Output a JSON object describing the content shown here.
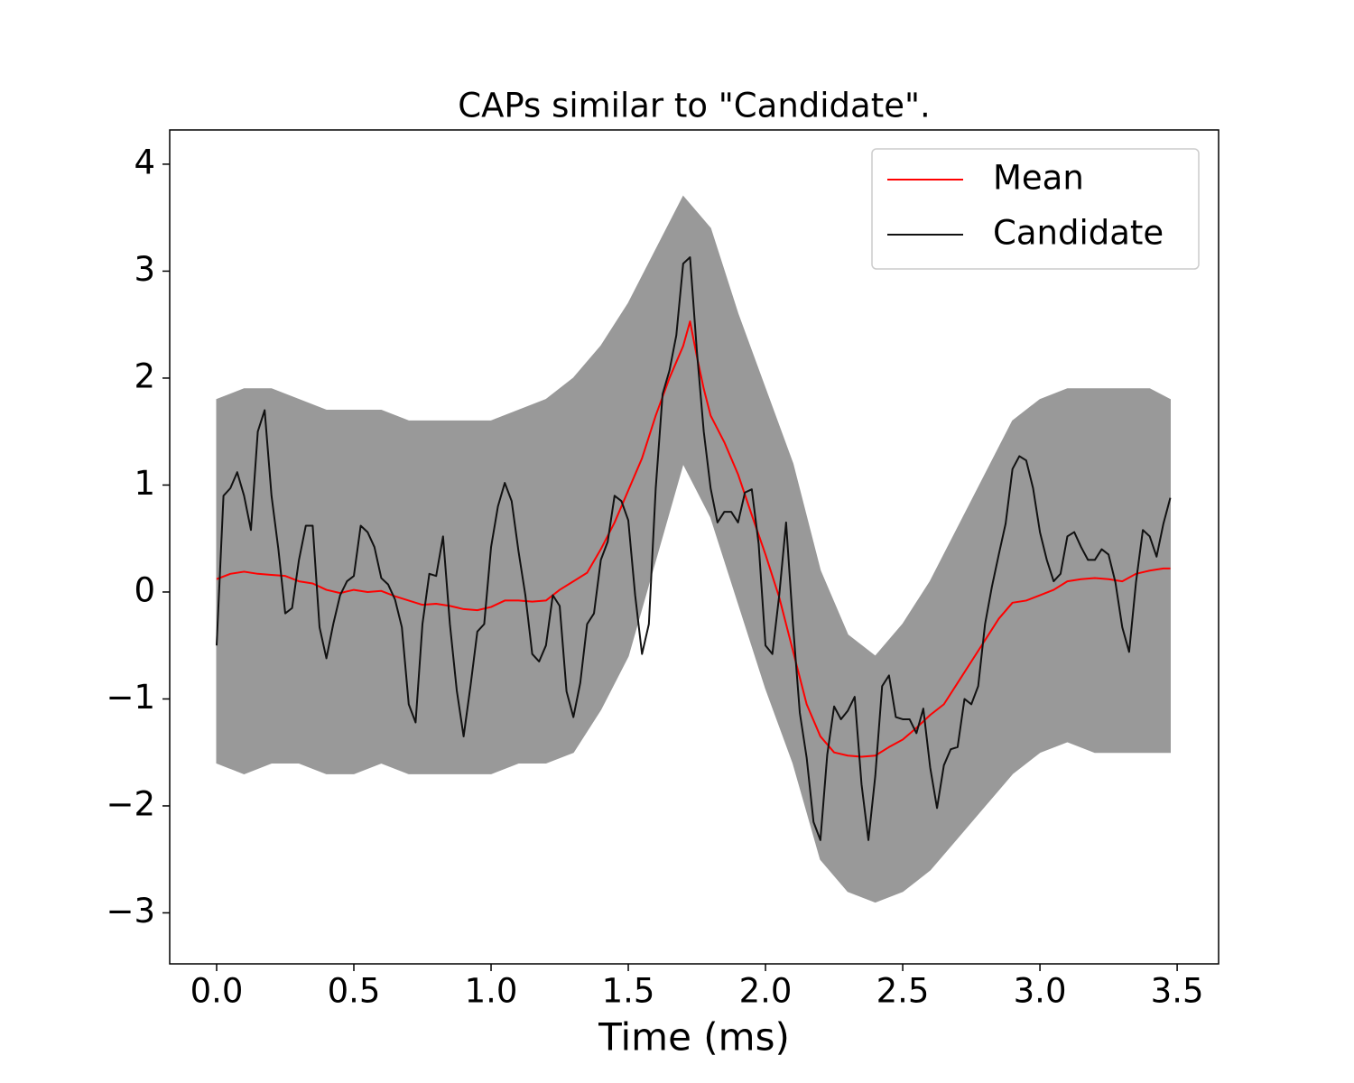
{
  "chart_data": {
    "type": "line",
    "title": "CAPs similar to \"Candidate\".",
    "xlabel": "Time (ms)",
    "xlim": [
      -0.171,
      3.651
    ],
    "ylim": [
      -3.477,
      4.32
    ],
    "xticks": [
      {
        "value": 0,
        "label": "0.0"
      },
      0.5,
      {
        "value": 1,
        "label": "1.0"
      },
      1.5,
      {
        "value": 2,
        "label": "2.0"
      },
      2.5,
      {
        "value": 3,
        "label": "3.0"
      },
      3.5
    ],
    "yticks": [
      {
        "value": -3,
        "label": "−3"
      },
      {
        "value": -2,
        "label": "−2"
      },
      {
        "value": -1,
        "label": "−1"
      },
      0,
      1,
      2,
      3,
      4
    ],
    "legend": "upper right",
    "band": {
      "color": "#999999",
      "x": [
        0,
        0.1,
        0.2,
        0.3,
        0.4,
        0.5,
        0.6,
        0.7,
        0.8,
        0.9,
        1.0,
        1.1,
        1.2,
        1.3,
        1.4,
        1.5,
        1.6,
        1.7,
        1.8,
        1.9,
        2.0,
        2.1,
        2.2,
        2.3,
        2.4,
        2.5,
        2.6,
        2.7,
        2.8,
        2.9,
        3.0,
        3.1,
        3.2,
        3.3,
        3.4,
        3.475
      ],
      "upper": [
        1.8,
        1.9,
        1.9,
        1.8,
        1.7,
        1.7,
        1.7,
        1.6,
        1.6,
        1.6,
        1.6,
        1.7,
        1.8,
        2.0,
        2.3,
        2.7,
        3.2,
        3.7,
        3.4,
        2.6,
        1.9,
        1.2,
        0.2,
        -0.4,
        -0.6,
        -0.3,
        0.1,
        0.6,
        1.1,
        1.6,
        1.8,
        1.9,
        1.9,
        1.9,
        1.9,
        1.8
      ],
      "lower": [
        -1.6,
        -1.7,
        -1.6,
        -1.6,
        -1.7,
        -1.7,
        -1.6,
        -1.7,
        -1.7,
        -1.7,
        -1.7,
        -1.6,
        -1.6,
        -1.5,
        -1.1,
        -0.6,
        0.3,
        1.2,
        0.7,
        -0.1,
        -0.9,
        -1.6,
        -2.5,
        -2.8,
        -2.9,
        -2.8,
        -2.6,
        -2.3,
        -2.0,
        -1.7,
        -1.5,
        -1.4,
        -1.5,
        -1.5,
        -1.5,
        -1.5
      ]
    },
    "series": [
      {
        "name": "Mean",
        "color": "#ff0000",
        "x": [
          0,
          0.05,
          0.1,
          0.15,
          0.2,
          0.25,
          0.3,
          0.35,
          0.4,
          0.45,
          0.5,
          0.55,
          0.6,
          0.65,
          0.7,
          0.75,
          0.8,
          0.85,
          0.9,
          0.95,
          1.0,
          1.05,
          1.1,
          1.15,
          1.2,
          1.25,
          1.3,
          1.35,
          1.4,
          1.45,
          1.5,
          1.55,
          1.6,
          1.65,
          1.7,
          1.725,
          1.75,
          1.775,
          1.8,
          1.85,
          1.9,
          1.95,
          2.0,
          2.05,
          2.1,
          2.15,
          2.2,
          2.25,
          2.3,
          2.35,
          2.4,
          2.45,
          2.5,
          2.55,
          2.6,
          2.65,
          2.7,
          2.75,
          2.8,
          2.85,
          2.9,
          2.95,
          3.0,
          3.05,
          3.1,
          3.15,
          3.2,
          3.25,
          3.3,
          3.35,
          3.4,
          3.45,
          3.475
        ],
        "values": [
          0.12,
          0.17,
          0.19,
          0.17,
          0.16,
          0.15,
          0.1,
          0.08,
          0.02,
          -0.01,
          0.02,
          0.0,
          0.01,
          -0.04,
          -0.08,
          -0.12,
          -0.11,
          -0.13,
          -0.16,
          -0.17,
          -0.14,
          -0.08,
          -0.08,
          -0.09,
          -0.08,
          0.02,
          0.1,
          0.18,
          0.4,
          0.65,
          0.95,
          1.25,
          1.65,
          2.0,
          2.3,
          2.53,
          2.2,
          1.9,
          1.65,
          1.4,
          1.1,
          0.72,
          0.35,
          -0.05,
          -0.55,
          -1.05,
          -1.35,
          -1.5,
          -1.53,
          -1.54,
          -1.53,
          -1.45,
          -1.38,
          -1.27,
          -1.15,
          -1.05,
          -0.85,
          -0.65,
          -0.45,
          -0.25,
          -0.1,
          -0.08,
          -0.03,
          0.02,
          0.1,
          0.12,
          0.13,
          0.12,
          0.1,
          0.17,
          0.2,
          0.22,
          0.22
        ]
      },
      {
        "name": "Candidate",
        "color": "#111111",
        "x": [
          0,
          0.025,
          0.05,
          0.075,
          0.1,
          0.125,
          0.15,
          0.175,
          0.2,
          0.225,
          0.25,
          0.275,
          0.3,
          0.325,
          0.35,
          0.375,
          0.4,
          0.425,
          0.45,
          0.475,
          0.5,
          0.525,
          0.55,
          0.575,
          0.6,
          0.625,
          0.65,
          0.675,
          0.7,
          0.725,
          0.75,
          0.775,
          0.8,
          0.825,
          0.85,
          0.875,
          0.9,
          0.925,
          0.95,
          0.975,
          1.0,
          1.025,
          1.05,
          1.075,
          1.1,
          1.125,
          1.15,
          1.175,
          1.2,
          1.225,
          1.25,
          1.275,
          1.3,
          1.325,
          1.35,
          1.375,
          1.4,
          1.425,
          1.45,
          1.475,
          1.5,
          1.525,
          1.55,
          1.575,
          1.6,
          1.625,
          1.65,
          1.675,
          1.7,
          1.725,
          1.75,
          1.775,
          1.8,
          1.825,
          1.85,
          1.875,
          1.9,
          1.925,
          1.95,
          1.975,
          2.0,
          2.025,
          2.05,
          2.075,
          2.1,
          2.125,
          2.15,
          2.175,
          2.2,
          2.225,
          2.25,
          2.275,
          2.3,
          2.325,
          2.35,
          2.375,
          2.4,
          2.425,
          2.45,
          2.475,
          2.5,
          2.525,
          2.55,
          2.575,
          2.6,
          2.625,
          2.65,
          2.675,
          2.7,
          2.725,
          2.75,
          2.775,
          2.8,
          2.825,
          2.85,
          2.875,
          2.9,
          2.925,
          2.95,
          2.975,
          3.0,
          3.025,
          3.05,
          3.075,
          3.1,
          3.125,
          3.15,
          3.175,
          3.2,
          3.225,
          3.25,
          3.275,
          3.3,
          3.325,
          3.35,
          3.375,
          3.4,
          3.425,
          3.45,
          3.475
        ],
        "values": [
          -0.5,
          0.9,
          0.97,
          1.12,
          0.9,
          0.58,
          1.5,
          1.7,
          0.9,
          0.4,
          -0.2,
          -0.15,
          0.3,
          0.62,
          0.62,
          -0.33,
          -0.62,
          -0.3,
          -0.03,
          0.1,
          0.15,
          0.62,
          0.56,
          0.42,
          0.13,
          0.07,
          -0.07,
          -0.33,
          -1.05,
          -1.22,
          -0.3,
          0.17,
          0.15,
          0.52,
          -0.3,
          -0.92,
          -1.35,
          -0.88,
          -0.37,
          -0.3,
          0.42,
          0.8,
          1.02,
          0.85,
          0.38,
          -0.03,
          -0.58,
          -0.65,
          -0.5,
          -0.03,
          -0.13,
          -0.93,
          -1.17,
          -0.85,
          -0.3,
          -0.2,
          0.3,
          0.47,
          0.9,
          0.85,
          0.67,
          -0.03,
          -0.58,
          -0.3,
          0.97,
          1.85,
          2.07,
          2.4,
          3.07,
          3.13,
          2.25,
          1.5,
          0.97,
          0.65,
          0.75,
          0.75,
          0.65,
          0.93,
          0.96,
          0.45,
          -0.5,
          -0.58,
          -0.03,
          0.65,
          -0.3,
          -1.13,
          -1.55,
          -2.15,
          -2.32,
          -1.52,
          -1.07,
          -1.19,
          -1.11,
          -0.98,
          -1.8,
          -2.32,
          -1.72,
          -0.88,
          -0.78,
          -1.17,
          -1.19,
          -1.19,
          -1.32,
          -1.09,
          -1.64,
          -2.02,
          -1.62,
          -1.47,
          -1.45,
          -1.0,
          -1.05,
          -0.88,
          -0.3,
          0.05,
          0.35,
          0.64,
          1.15,
          1.27,
          1.23,
          0.97,
          0.56,
          0.3,
          0.1,
          0.17,
          0.52,
          0.56,
          0.42,
          0.3,
          0.3,
          0.4,
          0.35,
          0.09,
          -0.33,
          -0.56,
          0.09,
          0.58,
          0.52,
          0.33,
          0.64,
          0.88
        ]
      }
    ]
  }
}
